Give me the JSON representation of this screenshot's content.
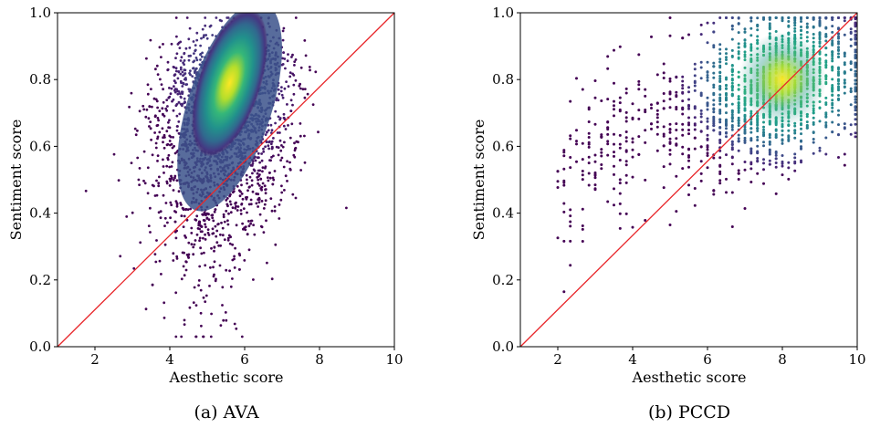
{
  "chart_data": [
    {
      "type": "scatter",
      "caption": "(a) AVA",
      "xlabel": "Aesthetic score",
      "ylabel": "Sentiment score",
      "xlim": [
        1,
        10
      ],
      "ylim": [
        0,
        1
      ],
      "xticks": [
        "2",
        "4",
        "6",
        "8",
        "10"
      ],
      "yticks": [
        "0.0",
        "0.2",
        "0.4",
        "0.6",
        "0.8",
        "1.0"
      ],
      "reference_line": {
        "from": [
          1,
          0
        ],
        "to": [
          10,
          1
        ],
        "color": "#e8262a"
      },
      "colormap": "viridis",
      "density_center": [
        5.6,
        0.79
      ],
      "point_color_low": "#440154",
      "point_color_high": "#fde725"
    },
    {
      "type": "scatter",
      "caption": "(b) PCCD",
      "xlabel": "Aesthetic score",
      "ylabel": "Sentiment score",
      "xlim": [
        1,
        10
      ],
      "ylim": [
        0,
        1
      ],
      "xticks": [
        "2",
        "4",
        "6",
        "8",
        "10"
      ],
      "yticks": [
        "0.0",
        "0.2",
        "0.4",
        "0.6",
        "0.8",
        "1.0"
      ],
      "reference_line": {
        "from": [
          1,
          0
        ],
        "to": [
          10,
          1
        ],
        "color": "#e8262a"
      },
      "colormap": "viridis",
      "density_center": [
        8.0,
        0.8
      ],
      "point_color_low": "#440154",
      "point_color_high": "#fde725"
    }
  ]
}
